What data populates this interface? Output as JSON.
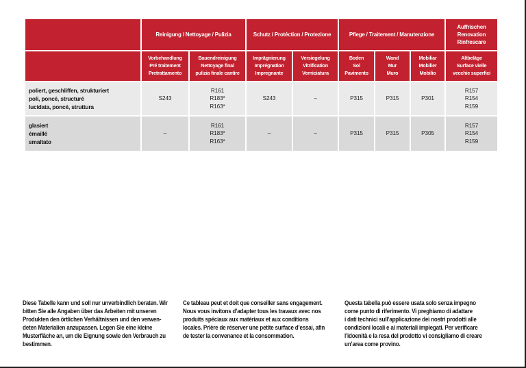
{
  "colors": {
    "header_red": "#c2222f",
    "row_light_gray": "#eaeaea",
    "row_dark_gray": "#d9d9d9",
    "frame_black": "#1c1c1c"
  },
  "table": {
    "groups": {
      "reinigung": "Reinigung / Nettoyage / Pulizia",
      "schutz": "Schutz / Protéction / Protezione",
      "pflege": "Pflege / Traitement / Manutenzione",
      "auffrischen": "Auffrischen\nRenovation\nRinfrescare"
    },
    "columns": [
      "Vorbehandlung\nPré traitement\nPretrattamento",
      "Bauendreinigung\nNettoyage final\npulizia finale cantire",
      "Imprägnierung\nImprégnation\nImpregnante",
      "Versiegelung\nVitrification\nVerniciatura",
      "Boden\nSol\nPavimento",
      "Wand\nMur\nMuro",
      "Mobiliar\nMobilier\nMobilio",
      "Altbeläge\nSurface vielle\nvecchie superfici"
    ],
    "rows": [
      {
        "label": "poliert, geschliffen, strukturiert\npoli, poncé, structuré\nlucidata, poncé, struttura",
        "values": [
          "S243",
          "R161\nR183*\nR163*",
          "S243",
          "–",
          "P315",
          "P315",
          "P301",
          "R157\nR154\nR159"
        ]
      },
      {
        "label": "glasiert\némaillé\nsmaltato",
        "values": [
          "–",
          "R161\nR183*\nR163*",
          "–",
          "–",
          "P315",
          "P315",
          "P305",
          "R157\nR154\nR159"
        ]
      }
    ]
  },
  "footnotes": {
    "de": "Diese Tabelle kann und soll nur unverbindlich beraten. Wir\nbitten Sie alle Angaben über das Arbeiten mit unseren\nProdukten den örtlichen Verhältnissen und den verwen-\ndeten Materialien anzupassen. Legen Sie eine kleine\nMusterfläche an, um die Eignung sowie den Verbrauch zu\nbestimmen.",
    "fr": "Ce tableau peut et doit que conseiller sans engagement.\nNous vous invitons d’adapter tous les travaux avec nos\nproduits spéciaux aux matériaux et aux conditions\nlocales. Prière de réserver une petite surface d’essai, afin\nde tester la convenance et la consommation.",
    "it": "Questa tabella può essere usata solo senza impegno\ncome punto di riferimento. Vi preghiamo di adattare\ni dati technici sull’applicazione dei nostri prodotti alle\ncondizioni locali e ai materiali impiegati. Per verificare\nl’idoenità e la resa del prodotto vi consigliamo di creare\nun’area come provino."
  }
}
